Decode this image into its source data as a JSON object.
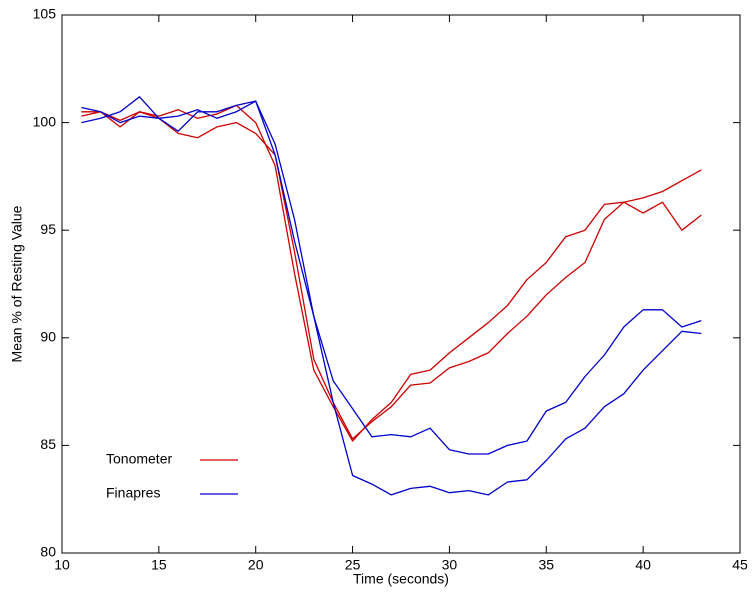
{
  "chart_data": {
    "type": "line",
    "xlabel": "Time (seconds)",
    "ylabel": "Mean % of Resting Value",
    "x": [
      11,
      12,
      13,
      14,
      15,
      16,
      17,
      18,
      19,
      20,
      21,
      22,
      23,
      24,
      25,
      26,
      27,
      28,
      29,
      30,
      31,
      32,
      33,
      34,
      35,
      36,
      37,
      38,
      39,
      40,
      41,
      42,
      43
    ],
    "series": [
      {
        "name": "Tonometer",
        "color": "#cc0000",
        "curves": [
          [
            100.3,
            100.5,
            100.1,
            100.5,
            100.3,
            100.6,
            100.2,
            100.4,
            100.8,
            100,
            98,
            93,
            88.5,
            86.8,
            85.2,
            86.2,
            87,
            88.3,
            88.5,
            89.3,
            90,
            90.7,
            91.5,
            92.7,
            93.5,
            94.7,
            95,
            96.2,
            96.3,
            96.5,
            96.8,
            97.3,
            97.8
          ],
          [
            100.5,
            100.5,
            99.8,
            100.5,
            100.2,
            99.5,
            99.3,
            99.8,
            100,
            99.5,
            98.5,
            94,
            89,
            87,
            85.3,
            86.1,
            86.8,
            87.8,
            87.9,
            88.6,
            88.9,
            89.3,
            90.2,
            91,
            92,
            92.8,
            93.5,
            95.5,
            96.3,
            95.8,
            96.3,
            95,
            95.7
          ]
        ]
      },
      {
        "name": "Finapres",
        "color": "#0000cc",
        "curves": [
          [
            100,
            100.2,
            100.5,
            101.2,
            100.2,
            99.6,
            100.5,
            100.5,
            100.8,
            101,
            98.5,
            94.5,
            91,
            88,
            86.7,
            85.4,
            85.5,
            85.4,
            85.8,
            84.8,
            84.6,
            84.6,
            85,
            85.2,
            86.6,
            87,
            88.2,
            89.2,
            90.5,
            91.3,
            91.3,
            90.5,
            90.8
          ],
          [
            100.7,
            100.5,
            100,
            100.3,
            100.2,
            100.3,
            100.6,
            100.2,
            100.5,
            101,
            99,
            95.5,
            91,
            87,
            83.6,
            83.2,
            82.7,
            83,
            83.1,
            82.8,
            82.9,
            82.7,
            83.3,
            83.4,
            84.3,
            85.3,
            85.8,
            86.8,
            87.4,
            88.5,
            89.4,
            90.3,
            90.2
          ]
        ]
      }
    ],
    "xlim": [
      10,
      45
    ],
    "xticks": [
      10,
      15,
      20,
      25,
      30,
      35,
      40,
      45
    ],
    "ylim": [
      80,
      105
    ],
    "yticks": [
      80,
      85,
      90,
      95,
      100,
      105
    ],
    "grid": false,
    "legend": "lower left"
  }
}
